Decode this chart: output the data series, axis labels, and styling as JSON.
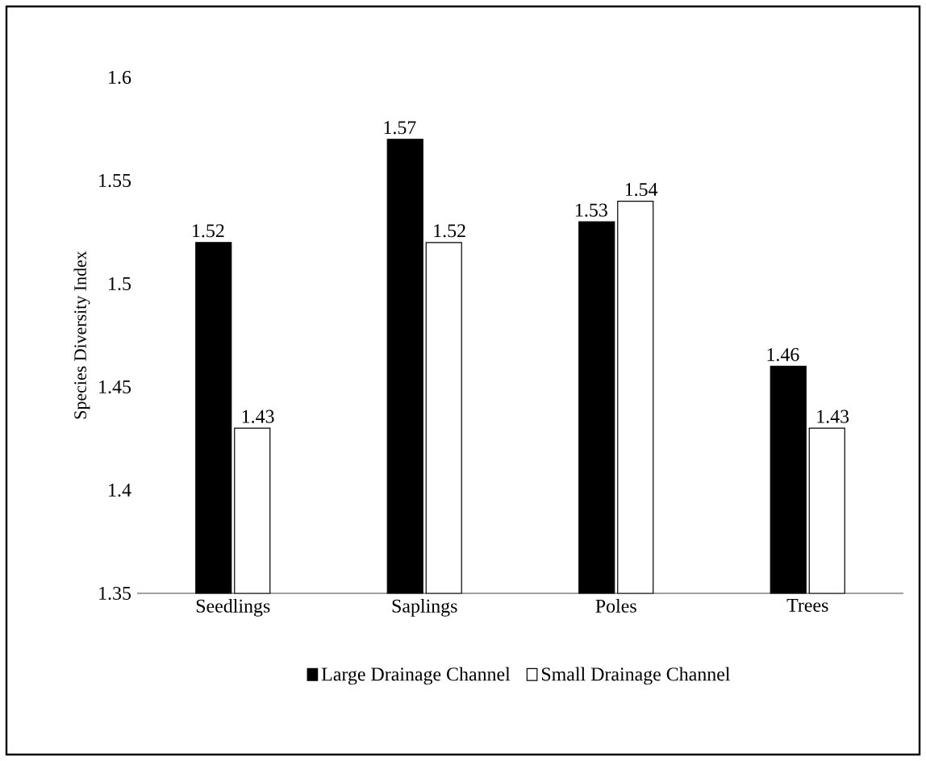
{
  "chart_data": {
    "type": "bar",
    "ylabel": "Species Diversity Index",
    "categories": [
      "Seedlings",
      "Saplings",
      "Poles",
      "Trees"
    ],
    "series": [
      {
        "name": "Large Drainage Channel",
        "color": "#000000",
        "values": [
          1.52,
          1.57,
          1.53,
          1.46
        ]
      },
      {
        "name": "Small Drainage Channel",
        "color": "#ffffff",
        "values": [
          1.43,
          1.52,
          1.54,
          1.43
        ]
      }
    ],
    "ylim": [
      1.35,
      1.6
    ],
    "yticks": [
      1.35,
      1.4,
      1.45,
      1.5,
      1.55,
      1.6
    ],
    "data_labels": true,
    "legend": "bottom"
  }
}
